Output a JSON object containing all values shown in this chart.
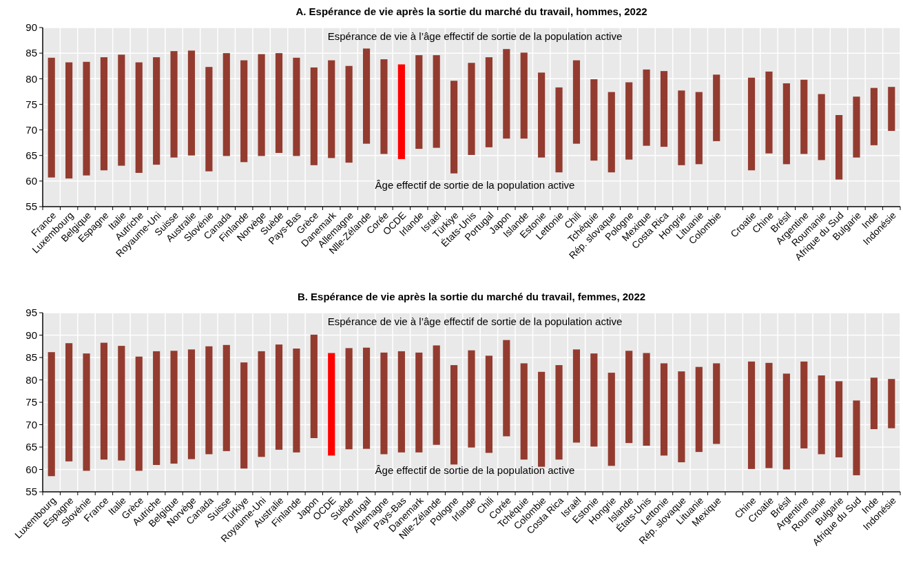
{
  "chart_data": [
    {
      "type": "bar",
      "title": "A. Espérance de vie après la sortie du marché du travail, hommes, 2022",
      "categories": [
        "France",
        "Luxembourg",
        "Belgique",
        "Espagne",
        "Italie",
        "Autriche",
        "Royaume-Uni",
        "Suisse",
        "Australie",
        "Slovénie",
        "Canada",
        "Finlande",
        "Norvège",
        "Suède",
        "Pays-Bas",
        "Grèce",
        "Danemark",
        "Allemagne",
        "Nlle-Zélande",
        "Corée",
        "OCDE",
        "Irlande",
        "Israël",
        "Türkiye",
        "États-Unis",
        "Portugal",
        "Japon",
        "Islande",
        "Estonie",
        "Lettonie",
        "Chili",
        "Tchéquie",
        "Rép. slovaque",
        "Pologne",
        "Mexique",
        "Costa Rica",
        "Hongrie",
        "Lituanie",
        "Colombie",
        null,
        "Croatie",
        "Chine",
        "Brésil",
        "Argentine",
        "Roumanie",
        "Afrique du Sud",
        "Bulgarie",
        "Inde",
        "Indonésie"
      ],
      "base": [
        60.7,
        60.5,
        61.1,
        62.1,
        63.0,
        61.6,
        63.2,
        64.6,
        65.0,
        61.9,
        64.9,
        63.7,
        64.9,
        65.5,
        64.9,
        63.1,
        64.5,
        63.6,
        67.3,
        65.3,
        64.3,
        66.3,
        66.5,
        61.5,
        65.1,
        66.6,
        68.3,
        68.3,
        64.6,
        61.7,
        67.3,
        64.0,
        61.7,
        64.2,
        66.9,
        66.7,
        63.1,
        63.3,
        67.8,
        null,
        62.1,
        65.4,
        63.3,
        65.3,
        64.1,
        60.3,
        64.6,
        67.0,
        69.8
      ],
      "values": [
        23.4,
        22.7,
        22.2,
        22.1,
        21.7,
        21.6,
        21.0,
        20.8,
        20.5,
        20.4,
        20.1,
        19.9,
        19.9,
        19.5,
        19.2,
        19.1,
        19.1,
        18.9,
        18.6,
        18.5,
        18.5,
        18.3,
        18.1,
        18.1,
        18.0,
        17.6,
        17.5,
        16.8,
        16.6,
        16.6,
        16.3,
        15.9,
        15.7,
        15.1,
        14.9,
        14.8,
        14.6,
        14.1,
        13.0,
        null,
        18.1,
        16.0,
        15.8,
        14.5,
        12.9,
        12.6,
        11.9,
        11.2,
        8.6
      ],
      "colors": [
        "#943b2f",
        "#943b2f",
        "#943b2f",
        "#943b2f",
        "#943b2f",
        "#943b2f",
        "#943b2f",
        "#943b2f",
        "#943b2f",
        "#943b2f",
        "#943b2f",
        "#943b2f",
        "#943b2f",
        "#943b2f",
        "#943b2f",
        "#943b2f",
        "#943b2f",
        "#943b2f",
        "#943b2f",
        "#943b2f",
        "#ff0000",
        "#943b2f",
        "#943b2f",
        "#943b2f",
        "#943b2f",
        "#943b2f",
        "#943b2f",
        "#943b2f",
        "#943b2f",
        "#943b2f",
        "#943b2f",
        "#943b2f",
        "#943b2f",
        "#943b2f",
        "#943b2f",
        "#943b2f",
        "#943b2f",
        "#943b2f",
        "#943b2f",
        null,
        "#943b2f",
        "#943b2f",
        "#943b2f",
        "#943b2f",
        "#943b2f",
        "#943b2f",
        "#943b2f",
        "#943b2f",
        "#943b2f"
      ],
      "ylim": [
        55,
        90
      ],
      "yticks": [
        55,
        60,
        65,
        70,
        75,
        80,
        85,
        90
      ],
      "grid": true,
      "annotations": [
        "Espérance de vie à l’âge effectif de sortie de la population active",
        "Âge effectif de sortie de la population active"
      ]
    },
    {
      "type": "bar",
      "title": "B. Espérance de vie après la sortie du marché du travail, femmes, 2022",
      "categories": [
        "Luxembourg",
        "Espagne",
        "Slovénie",
        "France",
        "Italie",
        "Grèce",
        "Autriche",
        "Belgique",
        "Norvège",
        "Canada",
        "Suisse",
        "Türkiye",
        "Royaume-Uni",
        "Australie",
        "Finlande",
        "Japon",
        "OCDE",
        "Suède",
        "Portugal",
        "Allemagne",
        "Pays-Bas",
        "Danemark",
        "Nlle-Zélande",
        "Pologne",
        "Irlande",
        "Chili",
        "Corée",
        "Tchéquie",
        "Colombie",
        "Costa Rica",
        "Israël",
        "Estonie",
        "Hongrie",
        "Islande",
        "États-Unis",
        "Lettonie",
        "Rép. slovaque",
        "Lituanie",
        "Mexique",
        null,
        "Chine",
        "Croatie",
        "Brésil",
        "Argentine",
        "Roumanie",
        "Bulgarie",
        "Afrique du Sud",
        "Inde",
        "Indonésie"
      ],
      "base": [
        58.5,
        61.8,
        59.7,
        62.2,
        62.0,
        59.7,
        61.0,
        61.3,
        62.3,
        63.4,
        64.1,
        60.2,
        62.8,
        64.4,
        63.8,
        67.0,
        63.1,
        64.5,
        64.6,
        63.4,
        63.8,
        63.8,
        65.5,
        61.1,
        64.9,
        63.7,
        67.4,
        62.2,
        60.6,
        62.2,
        66.0,
        65.1,
        60.8,
        65.9,
        65.3,
        63.1,
        61.6,
        63.9,
        65.7,
        null,
        60.1,
        60.3,
        60.0,
        64.7,
        63.4,
        62.7,
        58.7,
        69.0,
        69.2
      ],
      "values": [
        27.7,
        26.4,
        26.2,
        26.1,
        25.6,
        25.5,
        25.4,
        25.2,
        24.5,
        24.1,
        23.7,
        23.7,
        23.6,
        23.5,
        23.2,
        23.1,
        22.9,
        22.6,
        22.6,
        22.7,
        22.6,
        22.3,
        22.2,
        22.2,
        21.7,
        21.7,
        21.5,
        21.5,
        21.2,
        21.1,
        20.8,
        20.8,
        20.8,
        20.6,
        20.7,
        20.6,
        20.3,
        19.0,
        18.0,
        null,
        24.0,
        23.5,
        21.4,
        19.4,
        17.6,
        17.0,
        16.7,
        11.5,
        11.0
      ],
      "colors": [
        "#943b2f",
        "#943b2f",
        "#943b2f",
        "#943b2f",
        "#943b2f",
        "#943b2f",
        "#943b2f",
        "#943b2f",
        "#943b2f",
        "#943b2f",
        "#943b2f",
        "#943b2f",
        "#943b2f",
        "#943b2f",
        "#943b2f",
        "#943b2f",
        "#ff0000",
        "#943b2f",
        "#943b2f",
        "#943b2f",
        "#943b2f",
        "#943b2f",
        "#943b2f",
        "#943b2f",
        "#943b2f",
        "#943b2f",
        "#943b2f",
        "#943b2f",
        "#943b2f",
        "#943b2f",
        "#943b2f",
        "#943b2f",
        "#943b2f",
        "#943b2f",
        "#943b2f",
        "#943b2f",
        "#943b2f",
        "#943b2f",
        "#943b2f",
        null,
        "#943b2f",
        "#943b2f",
        "#943b2f",
        "#943b2f",
        "#943b2f",
        "#943b2f",
        "#943b2f",
        "#943b2f",
        "#943b2f"
      ],
      "ylim": [
        55,
        95
      ],
      "yticks": [
        55,
        60,
        65,
        70,
        75,
        80,
        85,
        90,
        95
      ],
      "grid": true,
      "annotations": [
        "Espérance de vie à l’âge effectif de sortie de la population active",
        "Âge effectif de sortie de la population active"
      ]
    }
  ]
}
